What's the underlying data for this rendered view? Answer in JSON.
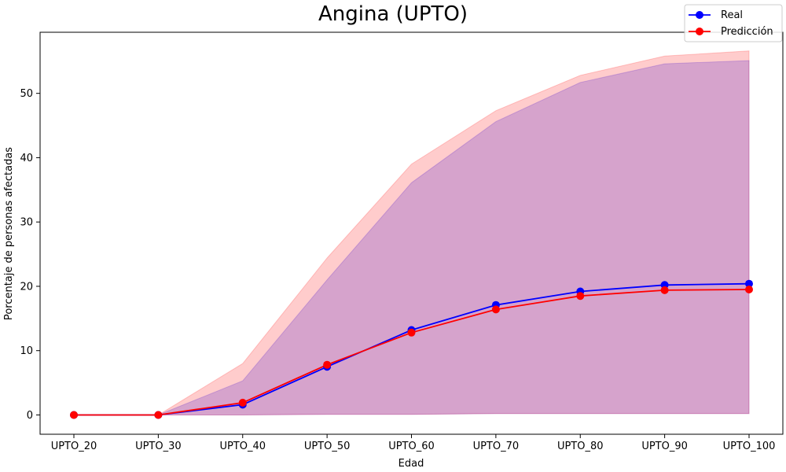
{
  "chart_data": {
    "type": "line",
    "title": "Angina (UPTO)",
    "xlabel": "Edad",
    "ylabel": "Porcentaje de personas afectadas",
    "categories": [
      "UPTO_20",
      "UPTO_30",
      "UPTO_40",
      "UPTO_50",
      "UPTO_60",
      "UPTO_70",
      "UPTO_80",
      "UPTO_90",
      "UPTO_100"
    ],
    "ylim": [
      -3,
      59.5
    ],
    "yticks": [
      0,
      10,
      20,
      30,
      40,
      50
    ],
    "grid": false,
    "legend_position": "top-right",
    "series": [
      {
        "name": "Real",
        "color": "#0000ff",
        "values": [
          0,
          0,
          1.6,
          7.5,
          13.2,
          17.1,
          19.2,
          20.2,
          20.4
        ],
        "band_lower": [
          0,
          0,
          0,
          0.1,
          0.1,
          0.2,
          0.2,
          0.2,
          0.2
        ],
        "band_upper": [
          0,
          0,
          5.3,
          21.0,
          36.1,
          45.6,
          51.7,
          54.6,
          55.1
        ],
        "band_color": "#0000ff"
      },
      {
        "name": "Predicción",
        "color": "#ff0000",
        "values": [
          0,
          0,
          1.9,
          7.8,
          12.8,
          16.4,
          18.5,
          19.4,
          19.5
        ],
        "band_lower": [
          0,
          0,
          0,
          0.1,
          0.1,
          0.2,
          0.2,
          0.2,
          0.2
        ],
        "band_upper": [
          0,
          0,
          8.0,
          24.4,
          39.0,
          47.3,
          52.8,
          55.8,
          56.6
        ],
        "band_color": "#ff0000"
      }
    ]
  }
}
